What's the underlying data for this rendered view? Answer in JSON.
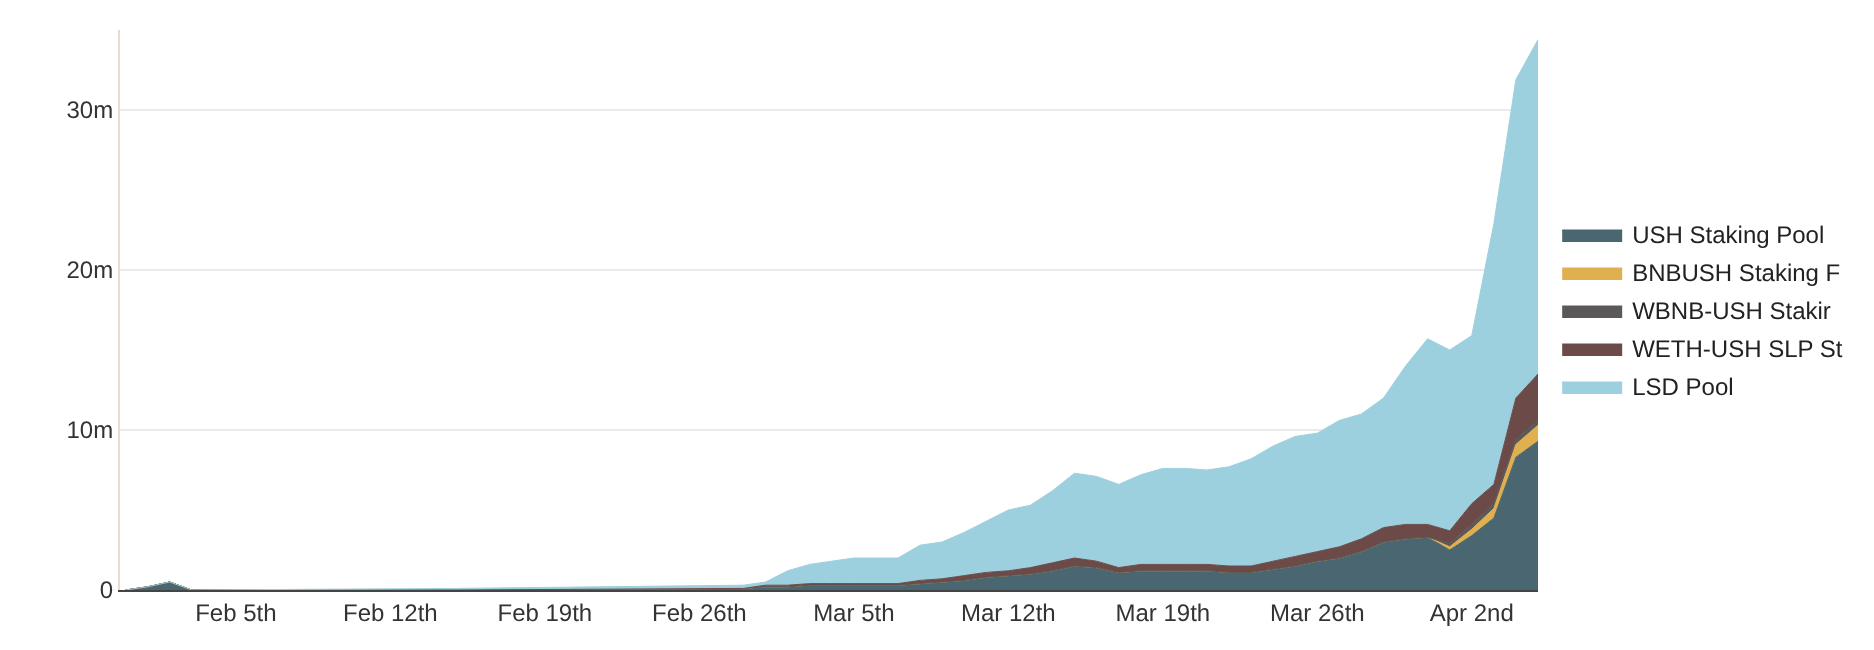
{
  "chart_data": {
    "type": "area",
    "stacked": true,
    "x": [
      "--01-31",
      "--02-01",
      "--02-02",
      "--02-03",
      "--02-15",
      "--02-28",
      "--03-01",
      "--03-02",
      "--03-03",
      "--03-04",
      "--03-05",
      "--03-06",
      "--03-07",
      "--03-08",
      "--03-09",
      "--03-10",
      "--03-11",
      "--03-12",
      "--03-13",
      "--03-14",
      "--03-15",
      "--03-16",
      "--03-17",
      "--03-18",
      "--03-19",
      "--03-20",
      "--03-21",
      "--03-22",
      "--03-23",
      "--03-24",
      "--03-25",
      "--03-26",
      "--03-27",
      "--03-28",
      "--03-29",
      "--03-30",
      "--03-31",
      "--04-01",
      "--04-02",
      "--04-03",
      "--04-04",
      "--04-05"
    ],
    "series": [
      {
        "name": "USH Staking Pool",
        "color": "#4a6670",
        "values": [
          0,
          0.2,
          0.5,
          0,
          0,
          0.1,
          0.2,
          0.2,
          0.3,
          0.3,
          0.3,
          0.3,
          0.3,
          0.4,
          0.5,
          0.6,
          0.8,
          0.9,
          1.0,
          1.2,
          1.5,
          1.4,
          1.1,
          1.2,
          1.2,
          1.2,
          1.2,
          1.1,
          1.1,
          1.3,
          1.5,
          1.8,
          2.0,
          2.4,
          3.0,
          3.2,
          3.3,
          2.5,
          3.4,
          4.5,
          8.3,
          9.3
        ]
      },
      {
        "name": "BNBUSH Staking F",
        "color": "#e0b050",
        "values": [
          0,
          0,
          0,
          0,
          0,
          0,
          0,
          0,
          0,
          0,
          0,
          0,
          0,
          0,
          0,
          0,
          0,
          0,
          0,
          0,
          0,
          0,
          0,
          0,
          0,
          0,
          0,
          0,
          0,
          0,
          0,
          0,
          0,
          0,
          0,
          0,
          0,
          0.2,
          0.4,
          0.6,
          0.8,
          1.0
        ]
      },
      {
        "name": "WBNB-USH Stakir",
        "color": "#5a5858",
        "values": [
          0,
          0,
          0,
          0,
          0,
          0,
          0,
          0,
          0,
          0,
          0,
          0,
          0,
          0,
          0,
          0,
          0,
          0,
          0,
          0,
          0,
          0,
          0,
          0,
          0,
          0,
          0,
          0,
          0,
          0,
          0,
          0,
          0,
          0,
          0,
          0,
          0,
          0.2,
          0.3,
          0.3,
          0.3,
          0.3
        ]
      },
      {
        "name": "WETH-USH SLP St",
        "color": "#6b4a48",
        "values": [
          0,
          0,
          0,
          0,
          0,
          0,
          0.1,
          0.1,
          0.1,
          0.1,
          0.1,
          0.1,
          0.1,
          0.2,
          0.2,
          0.3,
          0.3,
          0.3,
          0.4,
          0.5,
          0.5,
          0.4,
          0.3,
          0.4,
          0.4,
          0.4,
          0.4,
          0.4,
          0.4,
          0.5,
          0.6,
          0.6,
          0.7,
          0.8,
          0.9,
          0.9,
          0.8,
          0.8,
          1.3,
          1.2,
          2.6,
          2.9
        ]
      },
      {
        "name": "LSD Pool",
        "color": "#9dd0de",
        "values": [
          0,
          0,
          0,
          0,
          0.1,
          0.2,
          0.2,
          0.9,
          1.2,
          1.4,
          1.6,
          1.6,
          1.6,
          2.2,
          2.3,
          2.7,
          3.2,
          3.8,
          3.9,
          4.5,
          5.3,
          5.3,
          5.2,
          5.6,
          6.0,
          6.0,
          5.9,
          6.2,
          6.7,
          7.2,
          7.5,
          7.4,
          7.9,
          7.8,
          8.1,
          9.9,
          11.6,
          11.3,
          10.5,
          16.3,
          19.9,
          20.9
        ]
      }
    ],
    "xlim": [
      "--01-30T18:00",
      "--04-05"
    ],
    "xticks": [
      {
        "value": "--02-05",
        "label": "Feb 5th"
      },
      {
        "value": "--02-12",
        "label": "Feb 12th"
      },
      {
        "value": "--02-19",
        "label": "Feb 19th"
      },
      {
        "value": "--02-26",
        "label": "Feb 26th"
      },
      {
        "value": "--03-05",
        "label": "Mar 5th"
      },
      {
        "value": "--03-12",
        "label": "Mar 12th"
      },
      {
        "value": "--03-19",
        "label": "Mar 19th"
      },
      {
        "value": "--03-26",
        "label": "Mar 26th"
      },
      {
        "value": "--04-02",
        "label": "Apr 2nd"
      }
    ],
    "ylim": [
      0,
      35
    ],
    "yticks": [
      0,
      {
        "value": 10,
        "label": "10m"
      },
      {
        "value": 20,
        "label": "20m"
      },
      {
        "value": 30,
        "label": "30m"
      }
    ],
    "grid": "y",
    "legend": "right"
  }
}
